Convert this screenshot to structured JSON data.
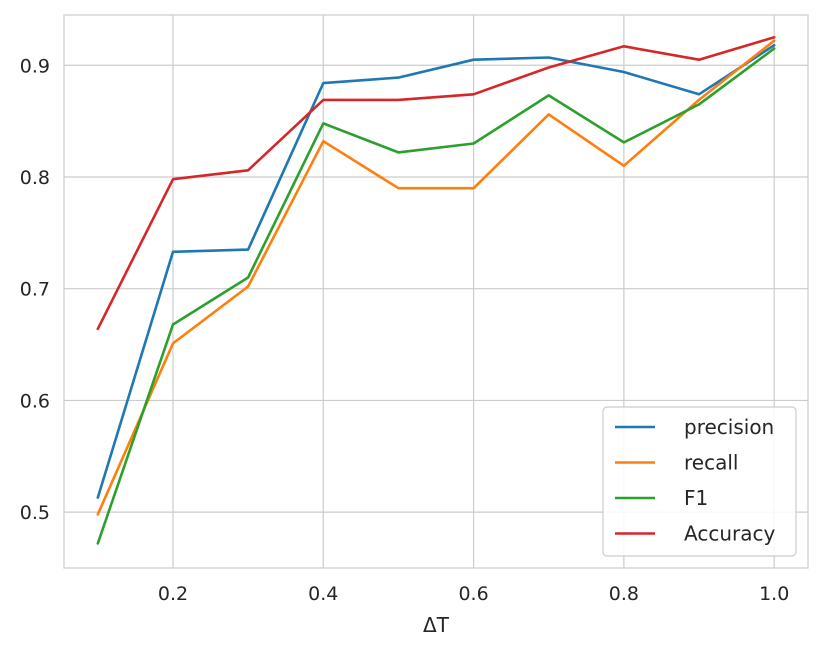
{
  "chart_data": {
    "type": "line",
    "title": "",
    "xlabel": "ΔT",
    "ylabel": "",
    "x": [
      0.1,
      0.2,
      0.3,
      0.4,
      0.5,
      0.6,
      0.7,
      0.8,
      0.9,
      1.0
    ],
    "xlim": [
      0.055,
      1.045
    ],
    "ylim": [
      0.45,
      0.945
    ],
    "x_ticks": [
      0.2,
      0.4,
      0.6,
      0.8,
      1.0
    ],
    "x_tick_labels": [
      "0.2",
      "0.4",
      "0.6",
      "0.8",
      "1.0"
    ],
    "y_ticks": [
      0.5,
      0.6,
      0.7,
      0.8,
      0.9
    ],
    "y_tick_labels": [
      "0.5",
      "0.6",
      "0.7",
      "0.8",
      "0.9"
    ],
    "grid": true,
    "legend_position": "lower-right",
    "series": [
      {
        "name": "precision",
        "color": "#1f77b4",
        "values": [
          0.513,
          0.733,
          0.735,
          0.884,
          0.889,
          0.905,
          0.907,
          0.894,
          0.874,
          0.918
        ]
      },
      {
        "name": "recall",
        "color": "#ff7f0e",
        "values": [
          0.498,
          0.651,
          0.702,
          0.832,
          0.79,
          0.79,
          0.856,
          0.81,
          0.869,
          0.922
        ]
      },
      {
        "name": "F1",
        "color": "#2ca02c",
        "values": [
          0.472,
          0.668,
          0.71,
          0.848,
          0.822,
          0.83,
          0.873,
          0.831,
          0.865,
          0.915
        ]
      },
      {
        "name": "Accuracy",
        "color": "#d62728",
        "values": [
          0.664,
          0.798,
          0.806,
          0.869,
          0.869,
          0.874,
          0.898,
          0.917,
          0.905,
          0.925
        ]
      }
    ]
  }
}
